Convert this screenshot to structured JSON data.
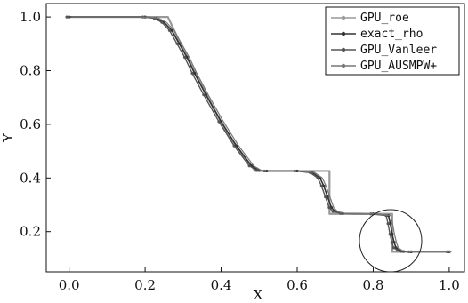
{
  "chart_data": {
    "type": "line",
    "xlabel": "X",
    "ylabel": "Y",
    "xlim": [
      -0.06,
      1.04
    ],
    "ylim": [
      0.05,
      1.05
    ],
    "x_ticks": [
      0.0,
      0.2,
      0.4,
      0.6,
      0.8,
      1.0
    ],
    "y_ticks": [
      0.2,
      0.4,
      0.6,
      0.8,
      1.0
    ],
    "x_tick_labels": [
      "0.0",
      "0.2",
      "0.4",
      "0.6",
      "0.8",
      "1.0"
    ],
    "y_tick_labels": [
      "0.2",
      "0.4",
      "0.6",
      "0.8",
      "1.0"
    ],
    "grid": false,
    "legend_position": "top-right",
    "legend": [
      "GPU_roe",
      "exact_rho",
      "GPU_Vanleer",
      "GPU_AUSMPW+"
    ],
    "annotation": "circle around the contact discontinuity near x = 0.85",
    "series": [
      {
        "name": "exact_rho",
        "color": "#999999",
        "x": [
          0.0,
          0.26,
          0.27,
          0.3,
          0.34,
          0.38,
          0.42,
          0.46,
          0.49,
          0.685,
          0.685,
          0.85,
          0.85,
          1.0
        ],
        "y": [
          1.0,
          1.0,
          0.97,
          0.88,
          0.77,
          0.66,
          0.56,
          0.48,
          0.426,
          0.426,
          0.266,
          0.266,
          0.125,
          0.125
        ]
      },
      {
        "name": "GPU_roe",
        "color": "#333333",
        "x": [
          0.0,
          0.2,
          0.23,
          0.25,
          0.27,
          0.29,
          0.31,
          0.33,
          0.36,
          0.4,
          0.44,
          0.48,
          0.5,
          0.52,
          0.6,
          0.64,
          0.66,
          0.67,
          0.68,
          0.69,
          0.7,
          0.72,
          0.8,
          0.84,
          0.845,
          0.85,
          0.855,
          0.86,
          0.87,
          0.88,
          0.9,
          1.0
        ],
        "y": [
          1.0,
          1.0,
          0.995,
          0.98,
          0.95,
          0.9,
          0.85,
          0.79,
          0.71,
          0.61,
          0.52,
          0.445,
          0.428,
          0.426,
          0.426,
          0.42,
          0.4,
          0.37,
          0.33,
          0.29,
          0.275,
          0.268,
          0.266,
          0.26,
          0.23,
          0.19,
          0.16,
          0.14,
          0.13,
          0.126,
          0.125,
          0.125
        ]
      },
      {
        "name": "GPU_Vanleer",
        "color": "#555555",
        "x": [
          0.0,
          0.2,
          0.23,
          0.25,
          0.27,
          0.29,
          0.31,
          0.33,
          0.36,
          0.4,
          0.44,
          0.48,
          0.5,
          0.52,
          0.6,
          0.64,
          0.66,
          0.67,
          0.68,
          0.69,
          0.7,
          0.72,
          0.8,
          0.84,
          0.845,
          0.85,
          0.855,
          0.86,
          0.87,
          0.88,
          0.9,
          1.0
        ],
        "y": [
          1.0,
          1.0,
          0.995,
          0.98,
          0.95,
          0.9,
          0.85,
          0.79,
          0.71,
          0.61,
          0.52,
          0.445,
          0.428,
          0.426,
          0.426,
          0.42,
          0.4,
          0.37,
          0.33,
          0.29,
          0.275,
          0.268,
          0.266,
          0.26,
          0.23,
          0.19,
          0.16,
          0.14,
          0.13,
          0.126,
          0.125,
          0.125
        ]
      },
      {
        "name": "GPU_AUSMPW+",
        "color": "#777777",
        "x": [
          0.0,
          0.2,
          0.23,
          0.25,
          0.27,
          0.29,
          0.31,
          0.33,
          0.36,
          0.4,
          0.44,
          0.48,
          0.5,
          0.52,
          0.6,
          0.64,
          0.66,
          0.67,
          0.68,
          0.69,
          0.7,
          0.72,
          0.8,
          0.84,
          0.845,
          0.85,
          0.855,
          0.86,
          0.87,
          0.88,
          0.9,
          1.0
        ],
        "y": [
          1.0,
          1.0,
          0.995,
          0.98,
          0.95,
          0.9,
          0.85,
          0.79,
          0.71,
          0.61,
          0.52,
          0.445,
          0.428,
          0.426,
          0.426,
          0.42,
          0.4,
          0.37,
          0.33,
          0.29,
          0.275,
          0.268,
          0.266,
          0.26,
          0.23,
          0.19,
          0.16,
          0.14,
          0.13,
          0.126,
          0.125,
          0.125
        ]
      }
    ]
  }
}
